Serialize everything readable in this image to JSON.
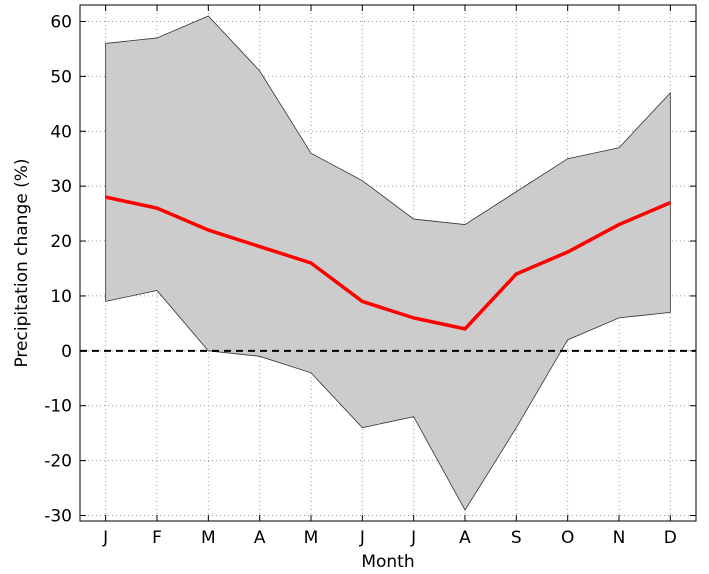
{
  "chart_data": {
    "type": "area",
    "title": "",
    "xlabel": "Month",
    "ylabel": "Precipitation change (%)",
    "categories": [
      "J",
      "F",
      "M",
      "A",
      "M",
      "J",
      "J",
      "A",
      "S",
      "O",
      "N",
      "D"
    ],
    "ylim": [
      -31,
      63
    ],
    "yticks": [
      60,
      50,
      40,
      30,
      20,
      10,
      0,
      -10,
      -20,
      -30
    ],
    "grid": true,
    "zero_line": 0,
    "series": [
      {
        "role": "upper",
        "values": [
          56,
          57,
          61,
          51,
          36,
          31,
          24,
          23,
          29,
          35,
          37,
          47
        ]
      },
      {
        "role": "lower",
        "values": [
          9,
          11,
          0,
          -1,
          -4,
          -14,
          -12,
          -29,
          -14,
          2,
          6,
          7
        ]
      },
      {
        "role": "mean",
        "values": [
          28,
          26,
          22,
          19,
          16,
          9,
          6,
          4,
          14,
          18,
          23,
          27
        ]
      }
    ],
    "colors": {
      "band": "#cccccc",
      "band_edge": "#333333",
      "mean": "#ff0000",
      "grid": "#9a9a9a",
      "zero": "#000000"
    }
  }
}
